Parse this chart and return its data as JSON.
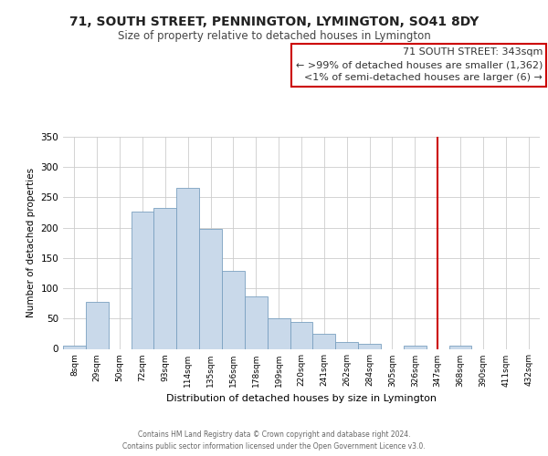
{
  "title": "71, SOUTH STREET, PENNINGTON, LYMINGTON, SO41 8DY",
  "subtitle": "Size of property relative to detached houses in Lymington",
  "xlabel": "Distribution of detached houses by size in Lymington",
  "ylabel": "Number of detached properties",
  "bin_labels": [
    "8sqm",
    "29sqm",
    "50sqm",
    "72sqm",
    "93sqm",
    "114sqm",
    "135sqm",
    "156sqm",
    "178sqm",
    "199sqm",
    "220sqm",
    "241sqm",
    "262sqm",
    "284sqm",
    "305sqm",
    "326sqm",
    "347sqm",
    "368sqm",
    "390sqm",
    "411sqm",
    "432sqm"
  ],
  "bar_heights": [
    5,
    77,
    0,
    226,
    233,
    265,
    198,
    129,
    87,
    50,
    44,
    25,
    11,
    9,
    0,
    5,
    0,
    5,
    0,
    0,
    0
  ],
  "bar_color": "#c9d9ea",
  "bar_edge_color": "#7aa0c0",
  "vline_color": "#cc0000",
  "ylim": [
    0,
    350
  ],
  "yticks": [
    0,
    50,
    100,
    150,
    200,
    250,
    300,
    350
  ],
  "annotation_title": "71 SOUTH STREET: 343sqm",
  "annotation_line1": "← >99% of detached houses are smaller (1,362)",
  "annotation_line2": "<1% of semi-detached houses are larger (6) →",
  "footer1": "Contains HM Land Registry data © Crown copyright and database right 2024.",
  "footer2": "Contains public sector information licensed under the Open Government Licence v3.0.",
  "background_color": "#ffffff",
  "grid_color": "#cccccc"
}
